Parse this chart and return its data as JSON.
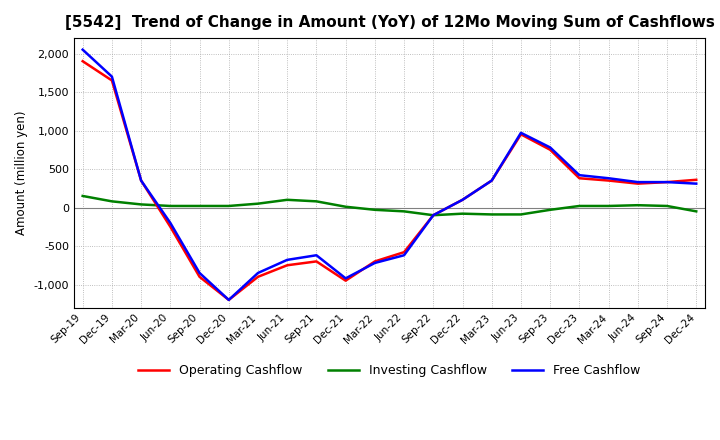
{
  "title": "[5542]  Trend of Change in Amount (YoY) of 12Mo Moving Sum of Cashflows",
  "ylabel": "Amount (million yen)",
  "ylim": [
    -1300,
    2200
  ],
  "yticks": [
    -1000,
    -500,
    0,
    500,
    1000,
    1500,
    2000
  ],
  "dates": [
    "Sep-19",
    "Dec-19",
    "Mar-20",
    "Jun-20",
    "Sep-20",
    "Dec-20",
    "Mar-21",
    "Jun-21",
    "Sep-21",
    "Dec-21",
    "Mar-22",
    "Jun-22",
    "Sep-22",
    "Dec-22",
    "Mar-23",
    "Jun-23",
    "Sep-23",
    "Dec-23",
    "Mar-24",
    "Jun-24",
    "Sep-24",
    "Dec-24"
  ],
  "operating": [
    1900,
    1650,
    350,
    -250,
    -900,
    -1200,
    -900,
    -750,
    -700,
    -950,
    -700,
    -580,
    -100,
    100,
    350,
    950,
    750,
    380,
    350,
    310,
    330,
    360
  ],
  "investing": [
    150,
    80,
    40,
    20,
    20,
    20,
    50,
    100,
    80,
    10,
    -30,
    -50,
    -100,
    -80,
    -90,
    -90,
    -30,
    20,
    20,
    30,
    20,
    -50
  ],
  "free": [
    2050,
    1700,
    350,
    -200,
    -850,
    -1200,
    -850,
    -680,
    -620,
    -920,
    -720,
    -620,
    -100,
    100,
    350,
    970,
    780,
    420,
    380,
    330,
    330,
    310
  ],
  "operating_color": "#ff0000",
  "investing_color": "#008000",
  "free_color": "#0000ff",
  "background_color": "#ffffff",
  "grid_color": "#aaaaaa",
  "title_fontsize": 11,
  "legend_labels": [
    "Operating Cashflow",
    "Investing Cashflow",
    "Free Cashflow"
  ]
}
